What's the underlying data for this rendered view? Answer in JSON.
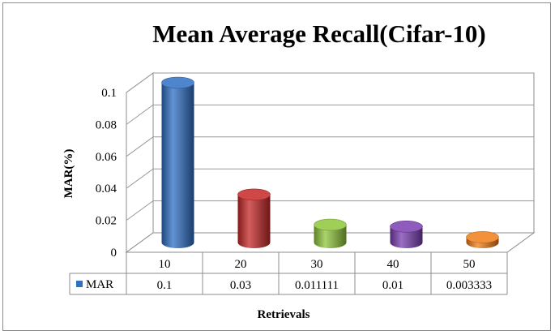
{
  "chart_data": {
    "type": "bar",
    "title": "Mean Average Recall(Cifar-10)",
    "xlabel": "Retrievals",
    "ylabel": "MAR(%)",
    "categories": [
      "10",
      "20",
      "30",
      "40",
      "50"
    ],
    "series": [
      {
        "name": "MAR",
        "values": [
          0.1,
          0.03,
          0.011111,
          0.01,
          0.003333
        ],
        "colors": [
          "#2f6fc4",
          "#c62828",
          "#8fc63c",
          "#7a3fb0",
          "#f07d1a"
        ]
      }
    ],
    "table_values": [
      "0.1",
      "0.03",
      "0.011111",
      "0.01",
      "0.003333"
    ],
    "yticks": [
      "0",
      "0.02",
      "0.04",
      "0.06",
      "0.08",
      "0.1"
    ],
    "ylim": [
      0,
      0.1
    ],
    "grid": true,
    "legend": "data-table-left",
    "legend_color": "#2f6fc4"
  }
}
